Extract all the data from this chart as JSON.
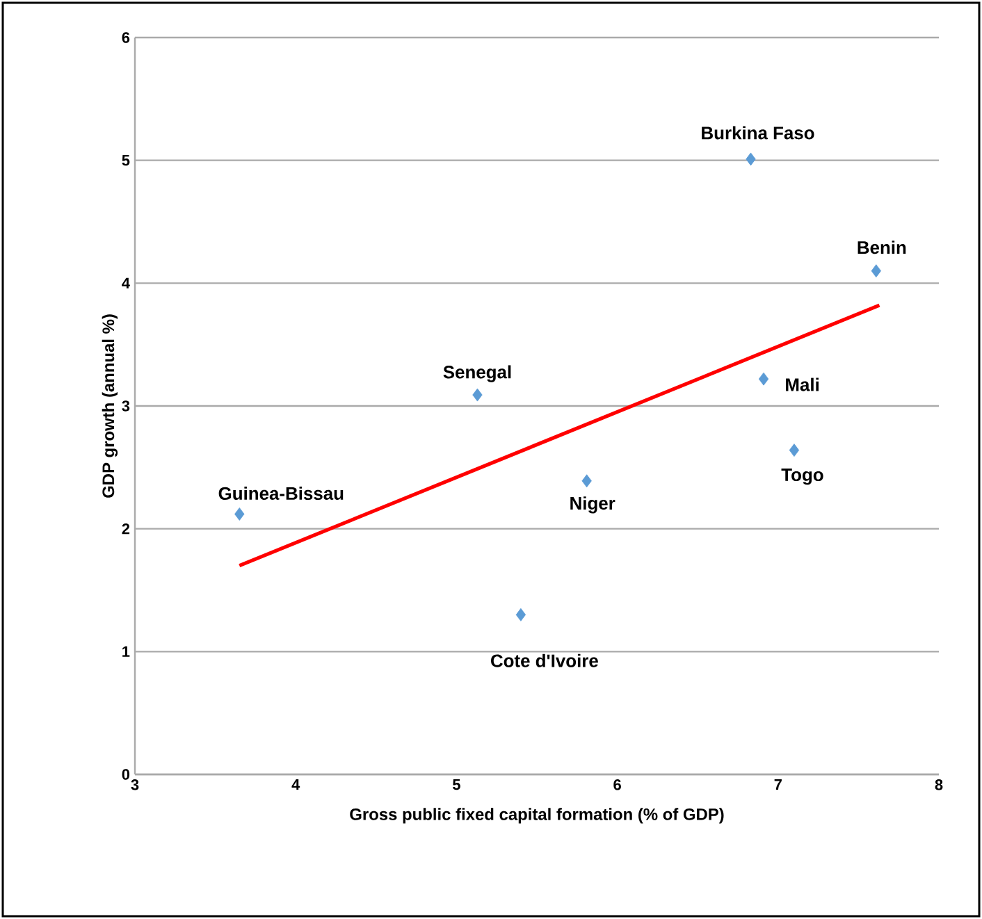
{
  "chart_data": {
    "type": "scatter",
    "xlabel": "Gross public fixed capital formation (% of GDP)",
    "ylabel": "GDP growth (annual %)",
    "xlim": [
      3,
      8
    ],
    "ylim": [
      0,
      6
    ],
    "xticks": [
      3,
      4,
      5,
      6,
      7,
      8
    ],
    "yticks": [
      0,
      1,
      2,
      3,
      4,
      5,
      6
    ],
    "grid": "y",
    "series": [
      {
        "color": "#5b9bd5",
        "marker": "diamond",
        "x": [
          3.65,
          5.13,
          5.4,
          5.81,
          6.83,
          6.91,
          7.1,
          7.61
        ],
        "values": [
          2.12,
          3.09,
          1.3,
          2.39,
          5.01,
          3.22,
          2.64,
          4.1
        ]
      },
      {
        "type": "line",
        "color": "#ff0000",
        "marker": "none",
        "line_style": "solid",
        "x": [
          3.65,
          7.63
        ],
        "values": [
          1.7,
          3.82
        ]
      }
    ],
    "annotations": [
      {
        "text": "Guinea-Bissau",
        "x": 3.65,
        "y": 2.12
      },
      {
        "text": "Senegal",
        "x": 5.13,
        "y": 3.09
      },
      {
        "text": "Cote d'Ivoire",
        "x": 5.4,
        "y": 1.3
      },
      {
        "text": "Niger",
        "x": 5.81,
        "y": 2.39
      },
      {
        "text": "Burkina Faso",
        "x": 6.83,
        "y": 5.01
      },
      {
        "text": "Mali",
        "x": 6.91,
        "y": 3.22
      },
      {
        "text": "Togo",
        "x": 7.1,
        "y": 2.64
      },
      {
        "text": "Benin",
        "x": 7.61,
        "y": 4.1
      }
    ]
  }
}
